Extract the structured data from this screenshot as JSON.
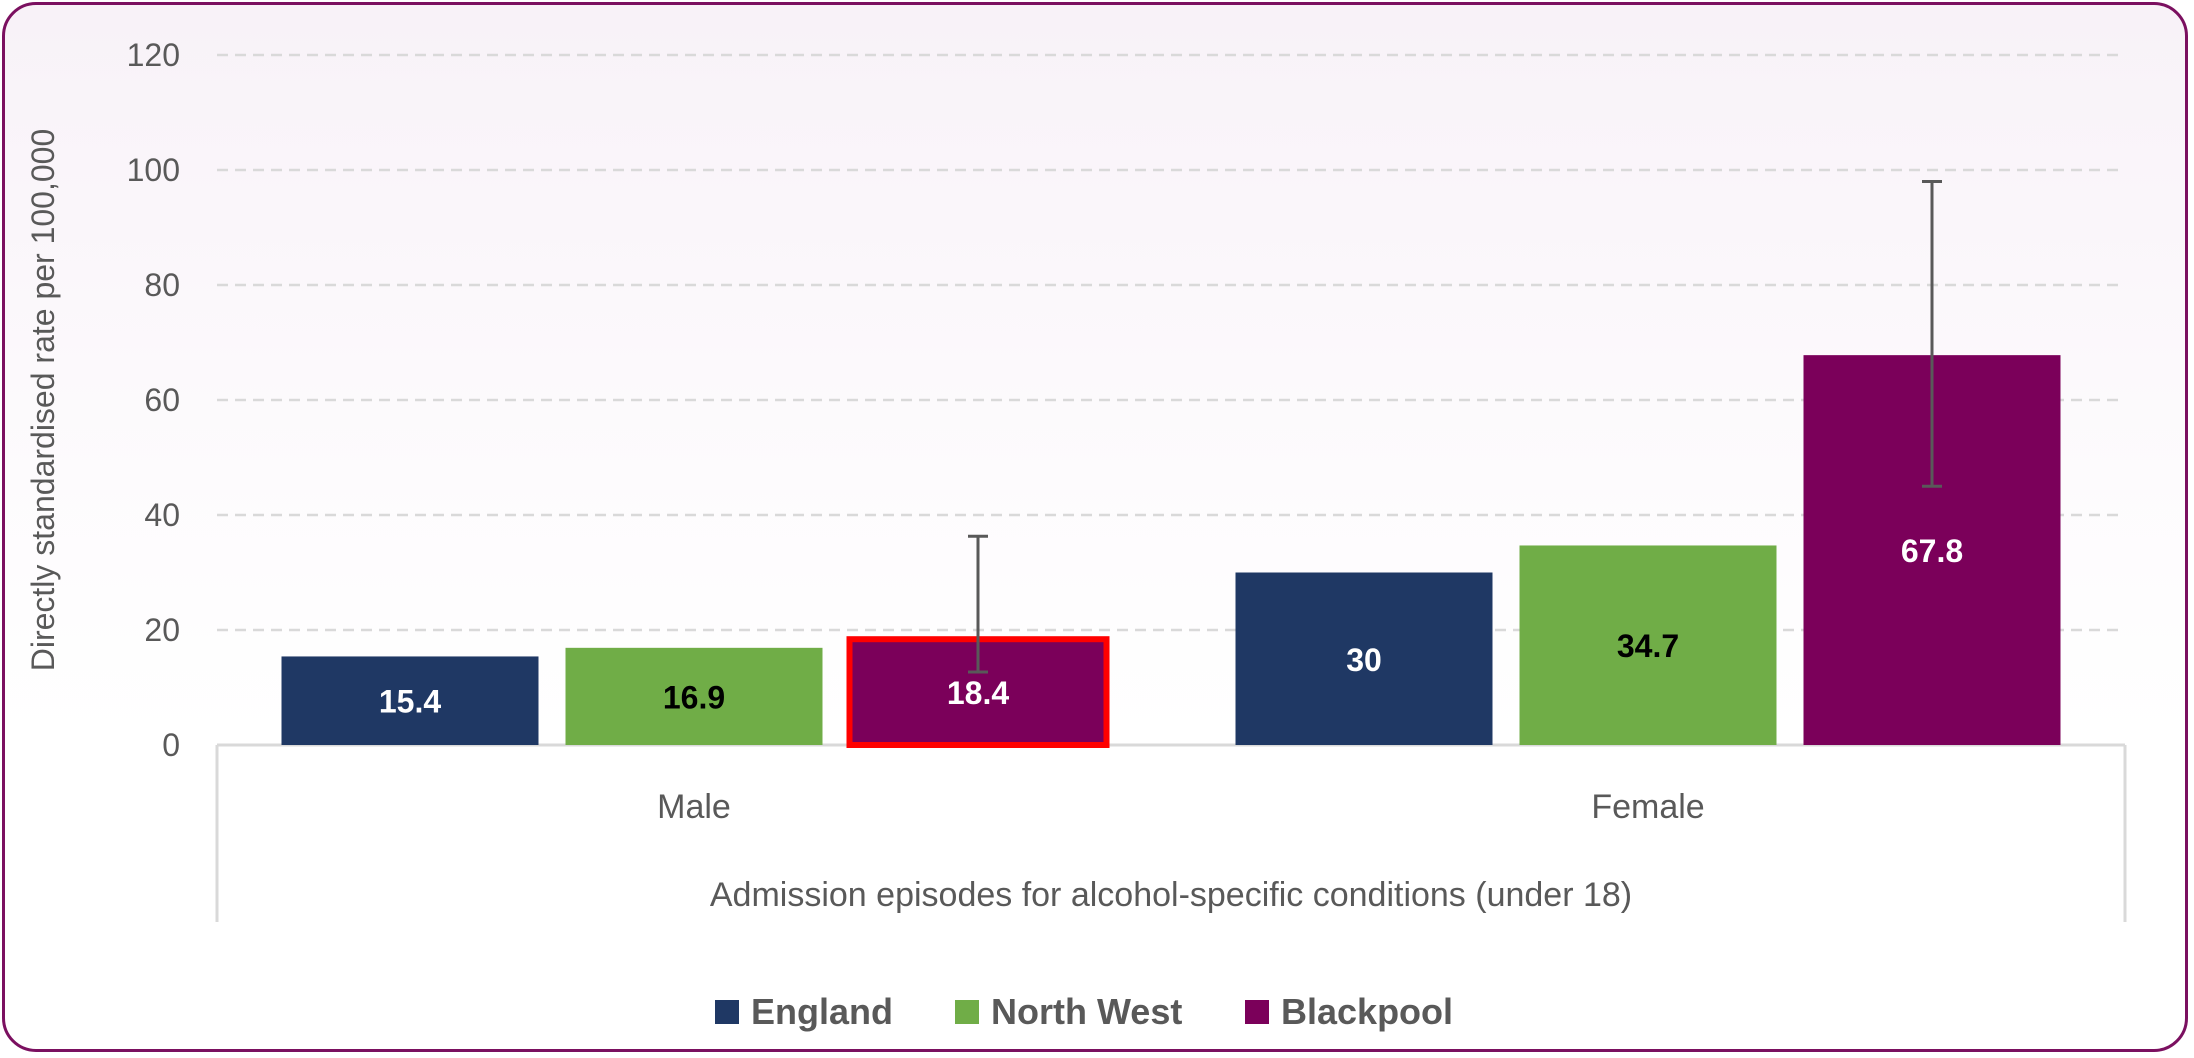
{
  "chart_data": {
    "type": "bar",
    "title": "",
    "xlabel": "Admission episodes for alcohol-specific conditions (under 18)",
    "ylabel": "Directly standardised rate per 100,000",
    "ylim": [
      0,
      120
    ],
    "yticks": [
      "0",
      "20",
      "40",
      "60",
      "80",
      "100",
      "120"
    ],
    "grid": true,
    "categories": [
      "Male",
      "Female"
    ],
    "legend_position": "bottom",
    "series": [
      {
        "name": "England",
        "color": "#1f3864",
        "label_color": "#ffffff",
        "values": [
          15.4,
          30
        ],
        "labels": [
          "15.4",
          "30"
        ]
      },
      {
        "name": "North West",
        "color": "#70ad47",
        "label_color": "#000000",
        "values": [
          16.9,
          34.7
        ],
        "labels": [
          "16.9",
          "34.7"
        ]
      },
      {
        "name": "Blackpool",
        "color": "#7b005a",
        "label_color": "#ffffff",
        "values": [
          18.4,
          67.8
        ],
        "labels": [
          "18.4",
          "67.8"
        ],
        "error_low": [
          12.7,
          45
        ],
        "error_high": [
          36.3,
          98
        ],
        "highlight": [
          true,
          false
        ]
      }
    ]
  }
}
